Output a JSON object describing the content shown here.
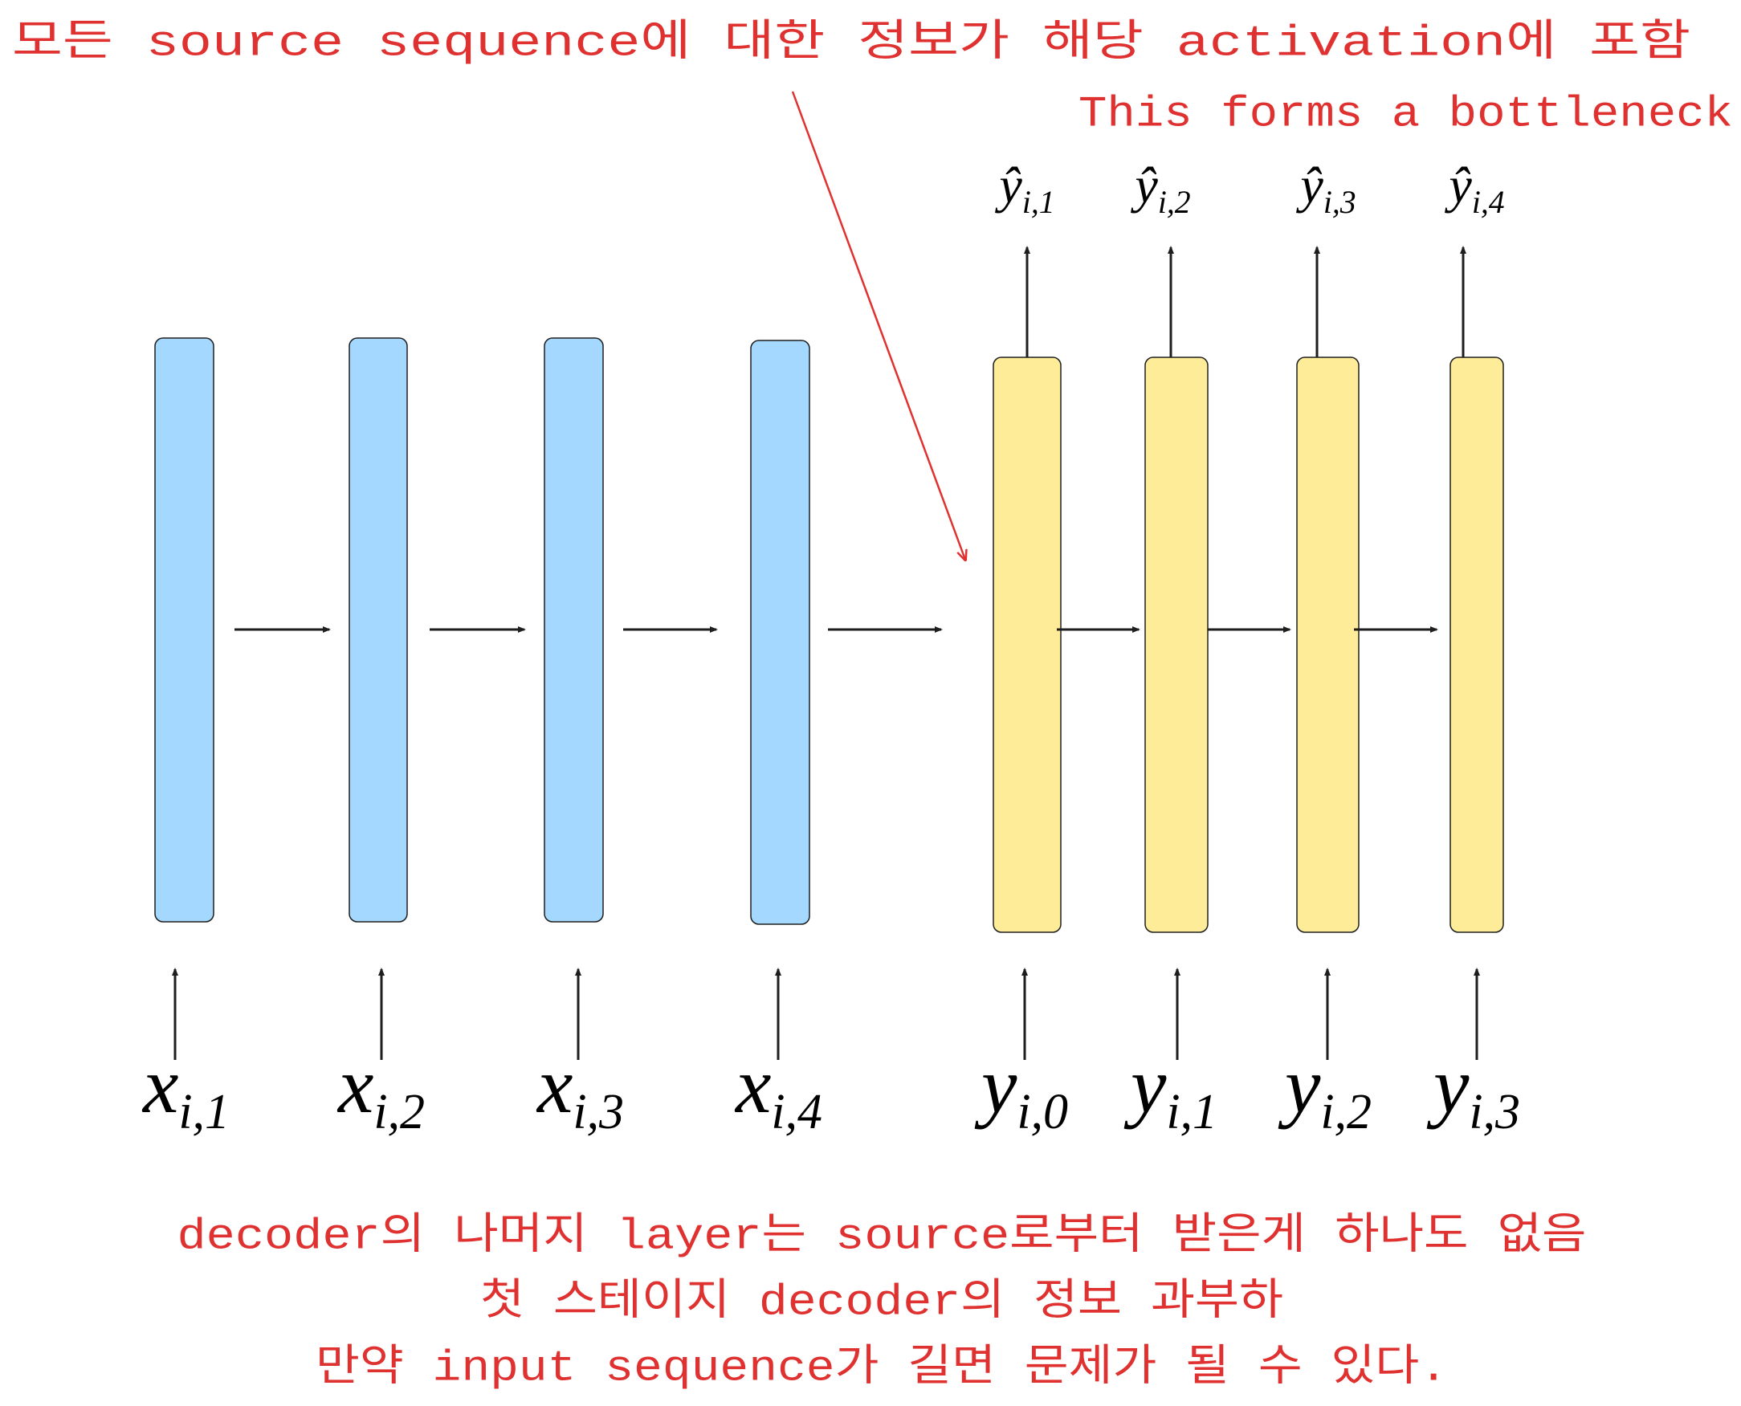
{
  "annotations": {
    "top": "모든 source sequence에 대한 정보가 해당 activation에 포함",
    "bottleneck": "This forms a bottleneck",
    "bottom": [
      "decoder의 나머지 layer는 source로부터 받은게 하나도 없음",
      "첫 스테이지 decoder의 정보 과부하",
      "만약 input sequence가 길면 문제가 될 수 있다."
    ]
  },
  "encoder_inputs": [
    {
      "base": "x",
      "sub": "i,1"
    },
    {
      "base": "x",
      "sub": "i,2"
    },
    {
      "base": "x",
      "sub": "i,3"
    },
    {
      "base": "x",
      "sub": "i,4"
    }
  ],
  "decoder_inputs": [
    {
      "base": "y",
      "sub": "i,0"
    },
    {
      "base": "y",
      "sub": "i,1"
    },
    {
      "base": "y",
      "sub": "i,2"
    },
    {
      "base": "y",
      "sub": "i,3"
    }
  ],
  "decoder_outputs": [
    {
      "base": "ŷ",
      "sub": "i,1"
    },
    {
      "base": "ŷ",
      "sub": "i,2"
    },
    {
      "base": "ŷ",
      "sub": "i,3"
    },
    {
      "base": "ŷ",
      "sub": "i,4"
    }
  ]
}
